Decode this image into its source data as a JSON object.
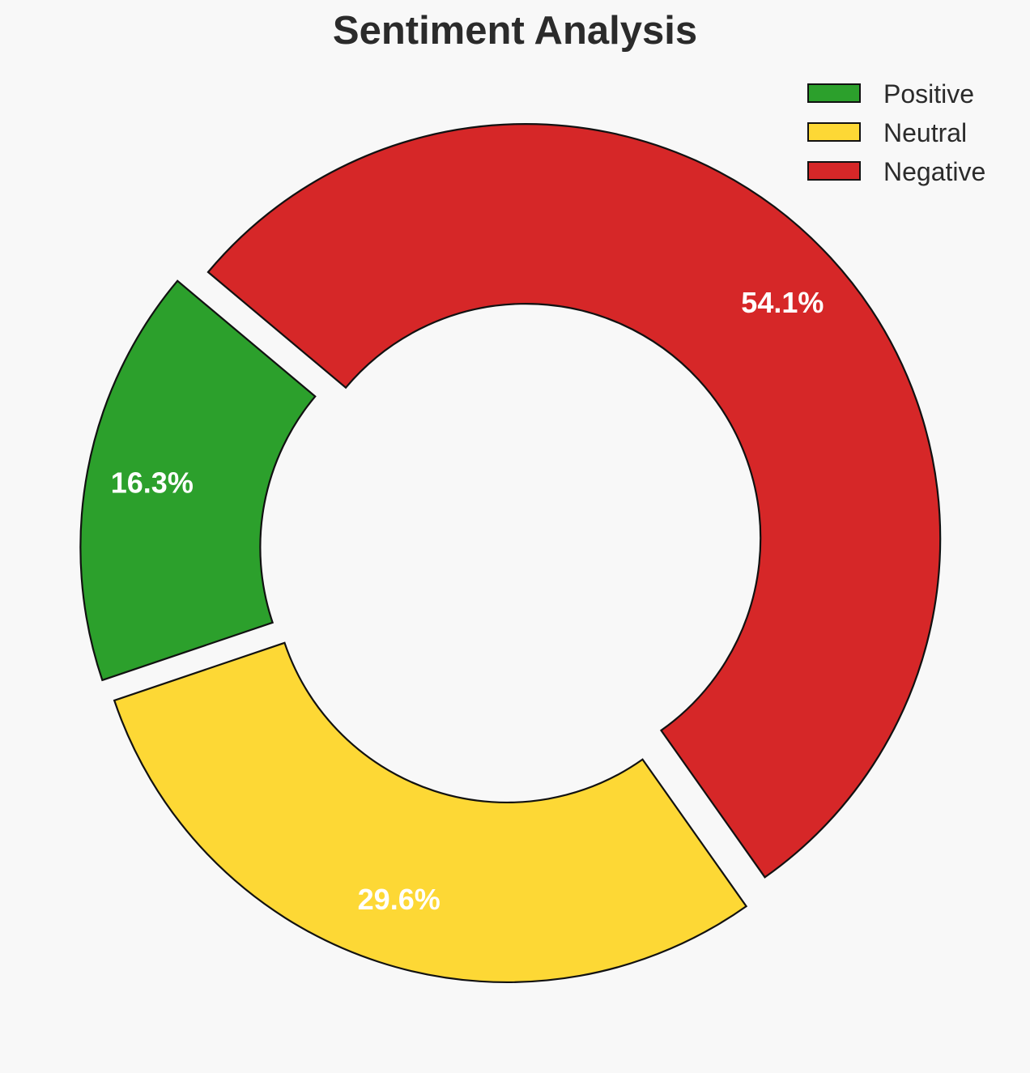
{
  "chart_data": {
    "type": "pie",
    "variant": "donut",
    "title": "Sentiment Analysis",
    "categories": [
      "Positive",
      "Neutral",
      "Negative"
    ],
    "values": [
      16.3,
      29.6,
      54.1
    ],
    "value_labels": [
      "16.3%",
      "29.6%",
      "54.1%"
    ],
    "colors": [
      "#2ca02c",
      "#fdd835",
      "#d62728"
    ],
    "exploded": true,
    "legend_position": "top-right"
  }
}
